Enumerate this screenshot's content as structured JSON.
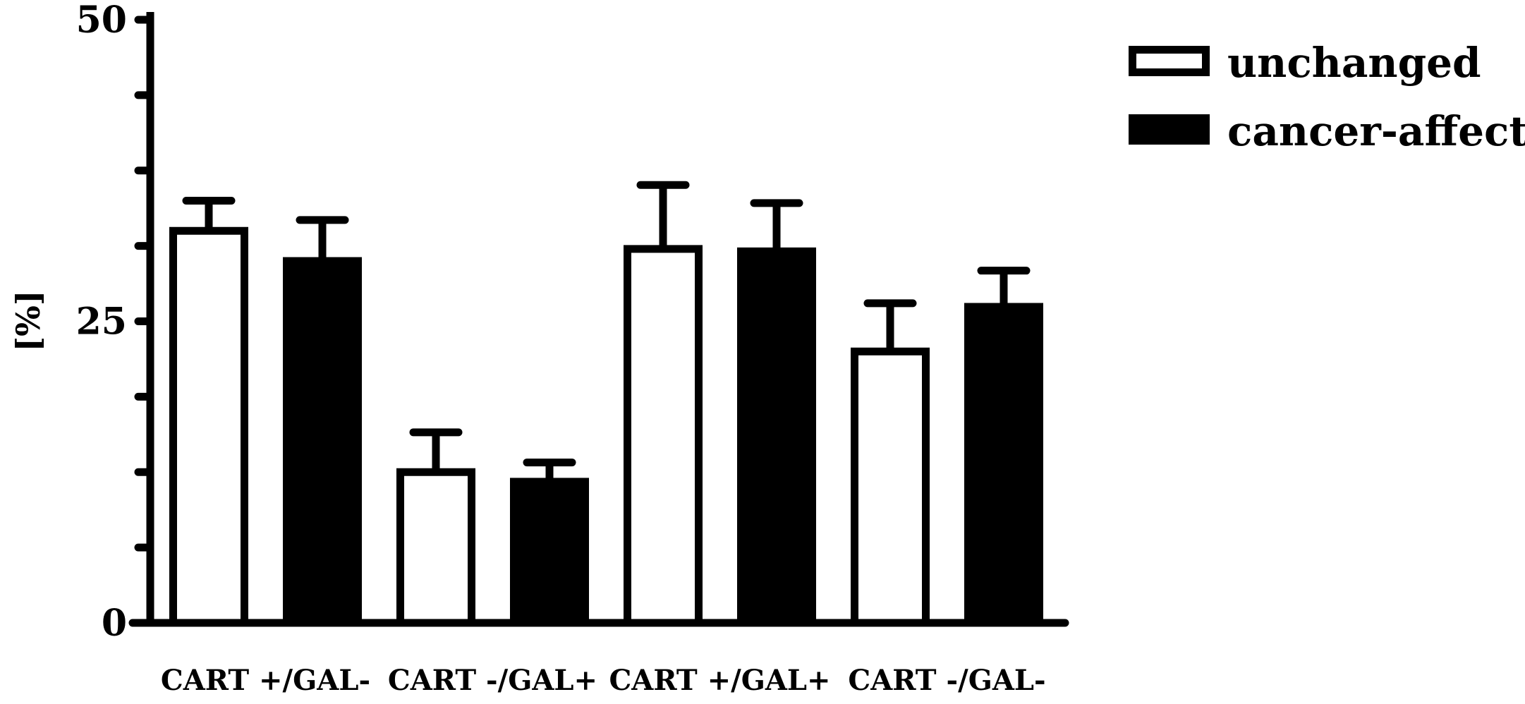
{
  "chart_data": {
    "type": "bar",
    "categories": [
      "CART +/GAL-",
      "CART -/GAL+",
      "CART +/GAL+",
      "CART -/GAL-"
    ],
    "series": [
      {
        "name": "unchanged",
        "values": [
          32.5,
          12.5,
          31.0,
          22.5
        ],
        "errors": [
          2.5,
          3.3,
          5.3,
          4.0
        ],
        "fill": "#ffffff"
      },
      {
        "name": "cancer-affected",
        "values": [
          30.0,
          11.7,
          30.8,
          26.2
        ],
        "errors": [
          3.4,
          1.6,
          4.0,
          3.0
        ],
        "fill": "#000000"
      }
    ],
    "ylabel": "[%]",
    "xlabel": "",
    "ylim": [
      0,
      50
    ],
    "yticks": [
      0,
      25,
      50
    ],
    "minor_tick_step": 6.25,
    "legend": "top-right",
    "grid": false,
    "colors": {
      "stroke": "#000000",
      "background": "#ffffff"
    }
  }
}
